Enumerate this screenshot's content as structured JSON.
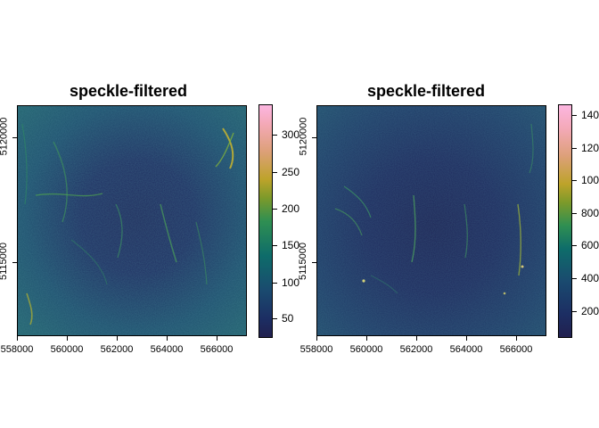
{
  "panels": [
    {
      "title": "speckle-filtered",
      "x_ticks": [
        "558000",
        "560000",
        "562000",
        "564000",
        "566000"
      ],
      "y_ticks": [
        "5115000",
        "5120000"
      ],
      "colorbar_ticks": [
        "50",
        "100",
        "150",
        "200",
        "250",
        "300"
      ]
    },
    {
      "title": "speckle-filtered",
      "x_ticks": [
        "558000",
        "560000",
        "562000",
        "564000",
        "566000"
      ],
      "y_ticks": [
        "5115000",
        "5120000"
      ],
      "colorbar_ticks": [
        "200",
        "400",
        "600",
        "800",
        "100",
        "120",
        "140"
      ]
    }
  ],
  "colors": {
    "low": "#202a60",
    "mid": "#0e6c6a",
    "high_green": "#3aa04a",
    "yellow": "#bda32a",
    "orange": "#e4a27c",
    "pink": "#fcb6e0"
  }
}
